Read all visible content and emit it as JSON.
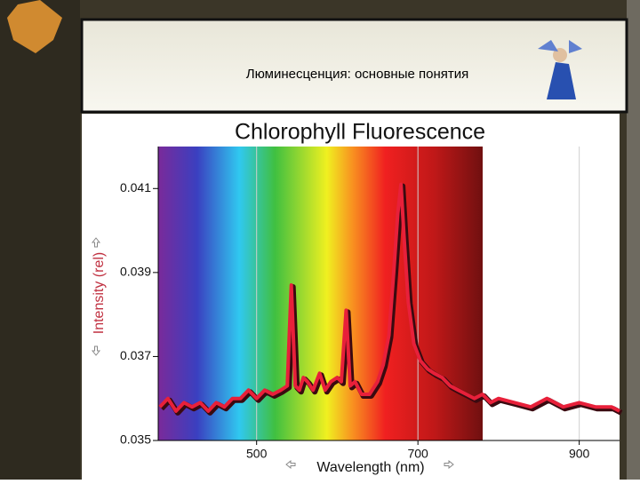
{
  "slide": {
    "title": "Люминесценция: основные понятия"
  },
  "chart_data": {
    "type": "line",
    "title": "Chlorophyll Fluorescence",
    "x_label": "Wavelength (nm)",
    "y_label": "Intensity (rel)",
    "x": [
      380,
      390,
      400,
      410,
      420,
      430,
      440,
      450,
      460,
      470,
      480,
      490,
      500,
      510,
      520,
      530,
      538,
      543,
      548,
      553,
      558,
      563,
      570,
      578,
      585,
      592,
      600,
      605,
      611,
      616,
      622,
      630,
      640,
      650,
      657,
      664,
      670,
      675,
      679,
      683,
      688,
      695,
      703,
      712,
      720,
      730,
      740,
      750,
      760,
      770,
      780,
      790,
      800,
      820,
      840,
      860,
      880,
      900,
      920,
      940,
      950
    ],
    "values": [
      0.0358,
      0.036,
      0.0357,
      0.0359,
      0.0358,
      0.0359,
      0.0357,
      0.0359,
      0.0358,
      0.036,
      0.036,
      0.0362,
      0.036,
      0.0362,
      0.0361,
      0.0362,
      0.0363,
      0.0387,
      0.0363,
      0.0362,
      0.0365,
      0.0364,
      0.0362,
      0.0366,
      0.0362,
      0.0364,
      0.0365,
      0.0364,
      0.0381,
      0.0363,
      0.0364,
      0.0361,
      0.0361,
      0.0364,
      0.0368,
      0.0375,
      0.039,
      0.0404,
      0.0411,
      0.0398,
      0.0383,
      0.0373,
      0.0369,
      0.0367,
      0.0366,
      0.0365,
      0.0363,
      0.0362,
      0.0361,
      0.036,
      0.0361,
      0.0359,
      0.036,
      0.0359,
      0.0358,
      0.036,
      0.0358,
      0.0359,
      0.0358,
      0.0358,
      0.0357
    ],
    "color": "#e8203a",
    "xlim": [
      378,
      950
    ],
    "ylim": [
      0.035,
      0.042
    ],
    "xticks": [
      500,
      700,
      900
    ],
    "yticks": [
      0.035,
      0.037,
      0.039,
      0.041
    ],
    "grid": true
  }
}
